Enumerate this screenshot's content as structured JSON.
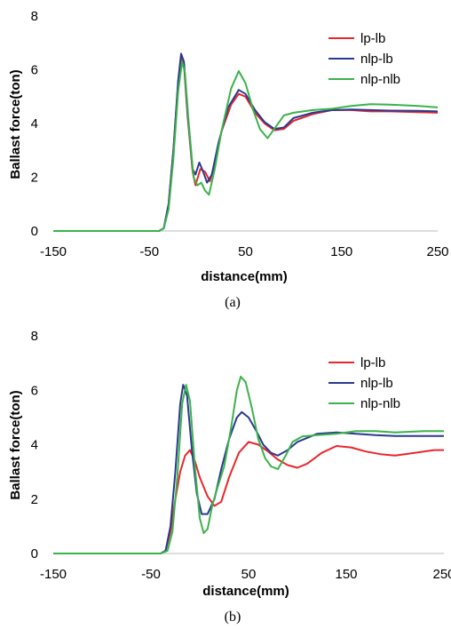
{
  "chart_data": [
    {
      "type": "line",
      "xlabel": "distance(mm)",
      "ylabel": "Ballast force(ton)",
      "caption": "(a)",
      "xlim": [
        -150,
        250
      ],
      "ylim": [
        0,
        8
      ],
      "xticks": [
        "-150",
        "-50",
        "50",
        "150",
        "250"
      ],
      "yticks": [
        "0",
        "2",
        "4",
        "6",
        "8"
      ],
      "legend_position": "top-right",
      "series": [
        {
          "name": "lp-lb",
          "color": "#e8272d",
          "points": [
            [
              -150,
              0
            ],
            [
              -40,
              0
            ],
            [
              -35,
              0.1
            ],
            [
              -30,
              1
            ],
            [
              -25,
              3
            ],
            [
              -20,
              5.5
            ],
            [
              -17,
              6.5
            ],
            [
              -14,
              6.2
            ],
            [
              -10,
              4.2
            ],
            [
              -5,
              2.2
            ],
            [
              -2,
              1.7
            ],
            [
              3,
              2.3
            ],
            [
              8,
              2.2
            ],
            [
              13,
              1.85
            ],
            [
              18,
              2.5
            ],
            [
              25,
              3.7
            ],
            [
              35,
              4.7
            ],
            [
              43,
              5.1
            ],
            [
              50,
              5.0
            ],
            [
              60,
              4.4
            ],
            [
              70,
              4.0
            ],
            [
              80,
              3.75
            ],
            [
              90,
              3.8
            ],
            [
              100,
              4.1
            ],
            [
              120,
              4.35
            ],
            [
              140,
              4.5
            ],
            [
              160,
              4.5
            ],
            [
              180,
              4.45
            ],
            [
              200,
              4.45
            ],
            [
              230,
              4.42
            ],
            [
              250,
              4.4
            ]
          ]
        },
        {
          "name": "nlp-lb",
          "color": "#2b3990",
          "points": [
            [
              -150,
              0
            ],
            [
              -40,
              0
            ],
            [
              -35,
              0.1
            ],
            [
              -30,
              1
            ],
            [
              -25,
              3
            ],
            [
              -20,
              5.6
            ],
            [
              -17,
              6.6
            ],
            [
              -14,
              6.3
            ],
            [
              -10,
              4.3
            ],
            [
              -5,
              2.3
            ],
            [
              -2,
              2.1
            ],
            [
              2,
              2.55
            ],
            [
              6,
              2.2
            ],
            [
              10,
              1.8
            ],
            [
              15,
              2.1
            ],
            [
              22,
              3.3
            ],
            [
              32,
              4.6
            ],
            [
              43,
              5.25
            ],
            [
              50,
              5.1
            ],
            [
              60,
              4.5
            ],
            [
              70,
              4.05
            ],
            [
              80,
              3.8
            ],
            [
              90,
              3.85
            ],
            [
              100,
              4.2
            ],
            [
              120,
              4.4
            ],
            [
              140,
              4.5
            ],
            [
              160,
              4.52
            ],
            [
              180,
              4.5
            ],
            [
              200,
              4.48
            ],
            [
              230,
              4.47
            ],
            [
              250,
              4.45
            ]
          ]
        },
        {
          "name": "nlp-nlb",
          "color": "#3bb34a",
          "points": [
            [
              -150,
              0
            ],
            [
              -40,
              0
            ],
            [
              -35,
              0.1
            ],
            [
              -30,
              0.8
            ],
            [
              -25,
              2.7
            ],
            [
              -20,
              5.2
            ],
            [
              -16,
              6.3
            ],
            [
              -13,
              5.9
            ],
            [
              -9,
              4.0
            ],
            [
              -4,
              2.0
            ],
            [
              0,
              1.7
            ],
            [
              4,
              1.8
            ],
            [
              8,
              1.5
            ],
            [
              12,
              1.35
            ],
            [
              18,
              2.3
            ],
            [
              25,
              3.7
            ],
            [
              35,
              5.3
            ],
            [
              43,
              5.95
            ],
            [
              50,
              5.5
            ],
            [
              58,
              4.5
            ],
            [
              65,
              3.8
            ],
            [
              73,
              3.45
            ],
            [
              80,
              3.8
            ],
            [
              90,
              4.3
            ],
            [
              100,
              4.4
            ],
            [
              120,
              4.5
            ],
            [
              140,
              4.55
            ],
            [
              160,
              4.65
            ],
            [
              180,
              4.72
            ],
            [
              200,
              4.7
            ],
            [
              230,
              4.65
            ],
            [
              250,
              4.6
            ]
          ]
        }
      ]
    },
    {
      "type": "line",
      "xlabel": "distance(mm)",
      "ylabel": "Ballast force(ton)",
      "caption": "(b)",
      "xlim": [
        -150,
        250
      ],
      "ylim": [
        0,
        8
      ],
      "xticks": [
        "-150",
        "-50",
        "50",
        "150",
        "250"
      ],
      "yticks": [
        "0",
        "2",
        "4",
        "6",
        "8"
      ],
      "legend_position": "top-right",
      "series": [
        {
          "name": "lp-lb",
          "color": "#e8272d",
          "points": [
            [
              -150,
              0
            ],
            [
              -40,
              0
            ],
            [
              -35,
              0.1
            ],
            [
              -30,
              0.8
            ],
            [
              -25,
              2.0
            ],
            [
              -20,
              3.0
            ],
            [
              -15,
              3.6
            ],
            [
              -10,
              3.8
            ],
            [
              -5,
              3.4
            ],
            [
              0,
              2.8
            ],
            [
              8,
              2.1
            ],
            [
              15,
              1.75
            ],
            [
              22,
              1.9
            ],
            [
              30,
              2.8
            ],
            [
              40,
              3.7
            ],
            [
              50,
              4.1
            ],
            [
              60,
              4.0
            ],
            [
              70,
              3.75
            ],
            [
              80,
              3.45
            ],
            [
              90,
              3.25
            ],
            [
              100,
              3.15
            ],
            [
              110,
              3.3
            ],
            [
              125,
              3.7
            ],
            [
              140,
              3.95
            ],
            [
              155,
              3.9
            ],
            [
              170,
              3.75
            ],
            [
              185,
              3.65
            ],
            [
              200,
              3.6
            ],
            [
              220,
              3.7
            ],
            [
              240,
              3.8
            ],
            [
              250,
              3.8
            ]
          ]
        },
        {
          "name": "nlp-lb",
          "color": "#2b3990",
          "points": [
            [
              -150,
              0
            ],
            [
              -40,
              0
            ],
            [
              -35,
              0.1
            ],
            [
              -30,
              1.0
            ],
            [
              -25,
              3.0
            ],
            [
              -20,
              5.5
            ],
            [
              -17,
              6.2
            ],
            [
              -13,
              5.8
            ],
            [
              -8,
              3.8
            ],
            [
              -3,
              2.2
            ],
            [
              2,
              1.45
            ],
            [
              8,
              1.45
            ],
            [
              15,
              2.0
            ],
            [
              22,
              3.1
            ],
            [
              30,
              4.2
            ],
            [
              38,
              5.0
            ],
            [
              43,
              5.2
            ],
            [
              50,
              5.0
            ],
            [
              58,
              4.5
            ],
            [
              65,
              4.0
            ],
            [
              73,
              3.7
            ],
            [
              80,
              3.6
            ],
            [
              90,
              3.8
            ],
            [
              100,
              4.1
            ],
            [
              120,
              4.4
            ],
            [
              140,
              4.45
            ],
            [
              160,
              4.4
            ],
            [
              180,
              4.35
            ],
            [
              200,
              4.32
            ],
            [
              230,
              4.32
            ],
            [
              250,
              4.32
            ]
          ]
        },
        {
          "name": "nlp-nlb",
          "color": "#3bb34a",
          "points": [
            [
              -150,
              0
            ],
            [
              -40,
              0
            ],
            [
              -33,
              0.1
            ],
            [
              -28,
              0.8
            ],
            [
              -23,
              2.8
            ],
            [
              -18,
              5.5
            ],
            [
              -14,
              6.2
            ],
            [
              -10,
              5.6
            ],
            [
              -5,
              3.2
            ],
            [
              0,
              1.3
            ],
            [
              4,
              0.75
            ],
            [
              8,
              0.9
            ],
            [
              13,
              1.8
            ],
            [
              18,
              2.4
            ],
            [
              25,
              3.2
            ],
            [
              32,
              4.6
            ],
            [
              38,
              6.0
            ],
            [
              42,
              6.5
            ],
            [
              47,
              6.3
            ],
            [
              53,
              5.4
            ],
            [
              60,
              4.2
            ],
            [
              67,
              3.5
            ],
            [
              73,
              3.2
            ],
            [
              80,
              3.1
            ],
            [
              88,
              3.6
            ],
            [
              95,
              4.1
            ],
            [
              105,
              4.3
            ],
            [
              120,
              4.35
            ],
            [
              140,
              4.4
            ],
            [
              160,
              4.5
            ],
            [
              180,
              4.5
            ],
            [
              200,
              4.45
            ],
            [
              230,
              4.5
            ],
            [
              250,
              4.5
            ]
          ]
        }
      ]
    }
  ]
}
